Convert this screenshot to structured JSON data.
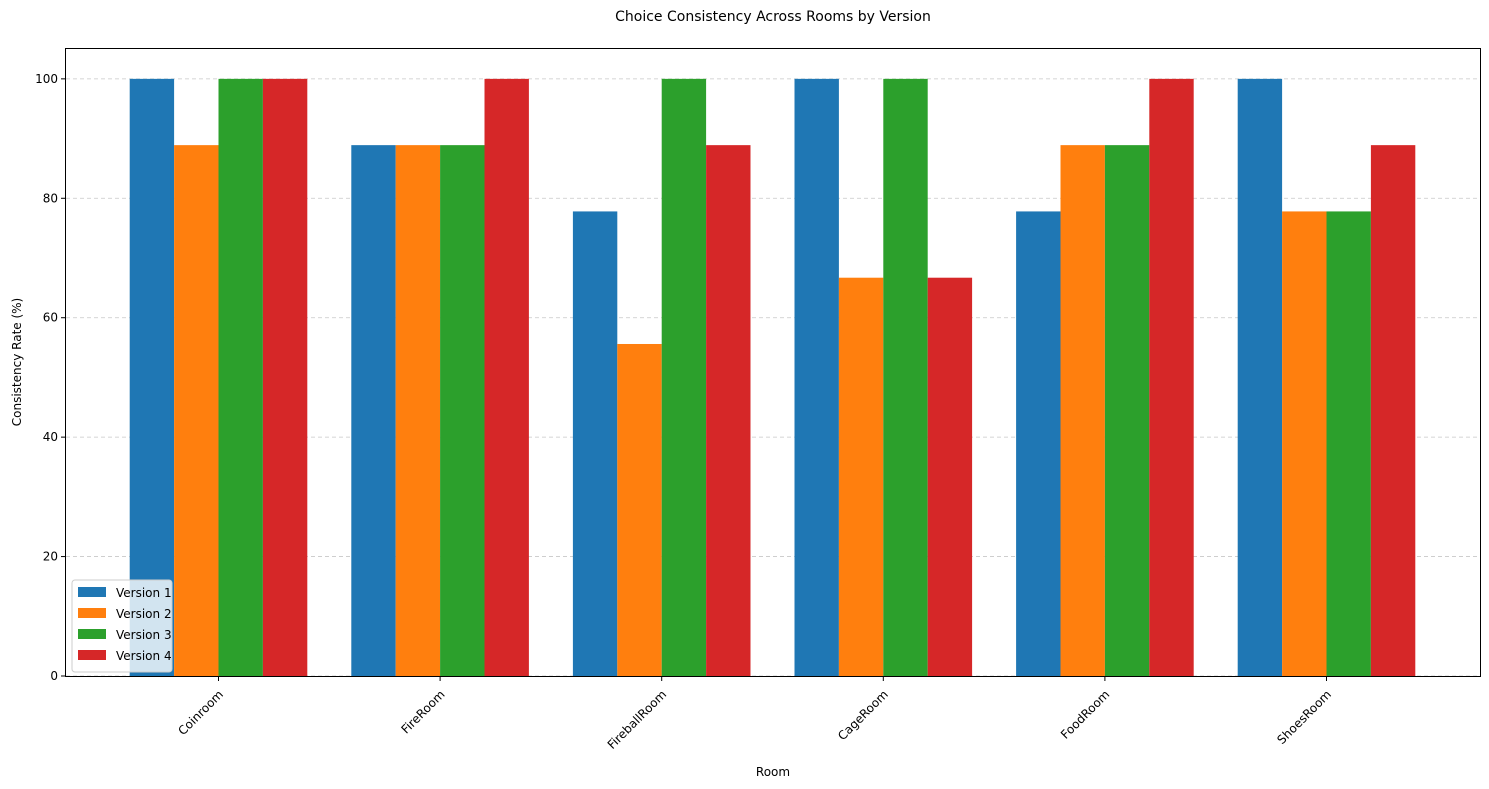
{
  "chart_data": {
    "type": "bar",
    "title": "Choice Consistency Across Rooms by Version",
    "xlabel": "Room",
    "ylabel": "Consistency Rate (%)",
    "categories": [
      "Coinroom",
      "FireRoom",
      "FireballRoom",
      "CageRoom",
      "FoodRoom",
      "ShoesRoom"
    ],
    "series": [
      {
        "name": "Version 1",
        "color": "#1f77b4",
        "values": [
          100,
          88.9,
          77.8,
          100,
          77.8,
          100
        ]
      },
      {
        "name": "Version 2",
        "color": "#ff7f0e",
        "values": [
          88.9,
          88.9,
          55.6,
          66.7,
          88.9,
          77.8
        ]
      },
      {
        "name": "Version 3",
        "color": "#2ca02c",
        "values": [
          100,
          88.9,
          100,
          100,
          88.9,
          77.8
        ]
      },
      {
        "name": "Version 4",
        "color": "#d62728",
        "values": [
          100,
          100,
          88.9,
          66.7,
          100,
          88.9
        ]
      }
    ],
    "ylim": [
      0,
      105
    ],
    "yticks": [
      0,
      20,
      40,
      60,
      80,
      100
    ],
    "grid": "y-dashed",
    "legend_position": "lower-left"
  }
}
